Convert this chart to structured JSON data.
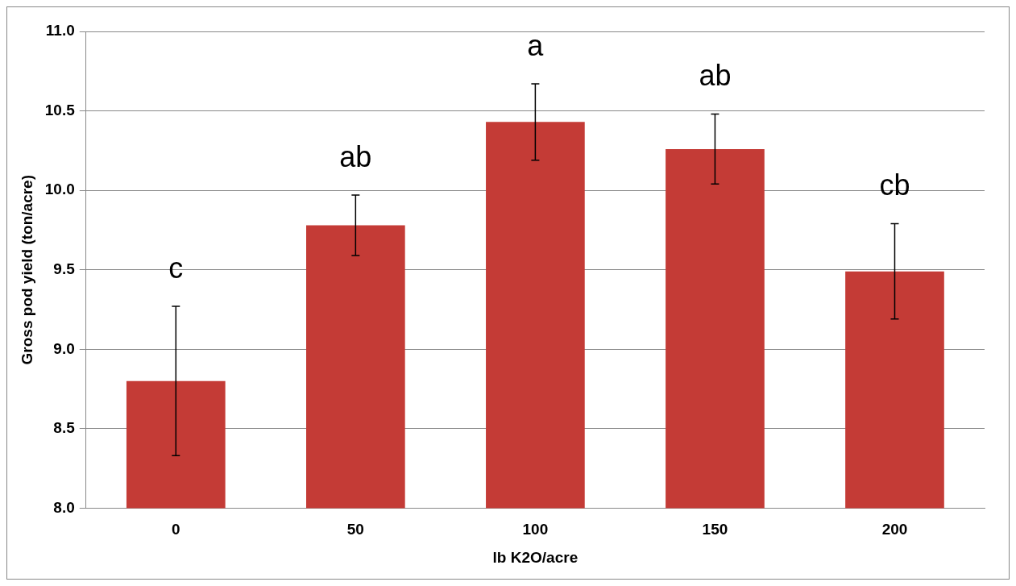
{
  "chart_data": {
    "type": "bar",
    "xlabel": "lb K2O/acre",
    "ylabel": "Gross pod yield (ton/acre)",
    "categories": [
      "0",
      "50",
      "100",
      "150",
      "200"
    ],
    "values": [
      8.8,
      9.78,
      10.43,
      10.26,
      9.49
    ],
    "errors": [
      0.47,
      0.19,
      0.24,
      0.22,
      0.3
    ],
    "color": "#c43b36",
    "ylim": [
      8,
      11
    ],
    "yticks": [
      {
        "value": 8,
        "label": "8.0"
      },
      {
        "value": 8.5,
        "label": "8.5"
      },
      {
        "value": 9,
        "label": "9.0"
      },
      {
        "value": 9.5,
        "label": "9.5"
      },
      {
        "value": 10,
        "label": "10.0"
      },
      {
        "value": 10.5,
        "label": "10.5"
      },
      {
        "value": 11,
        "label": "11.0"
      }
    ],
    "grid": "y",
    "legend": false,
    "annotations": [
      "c",
      "ab",
      "a",
      "ab",
      "cb"
    ]
  }
}
